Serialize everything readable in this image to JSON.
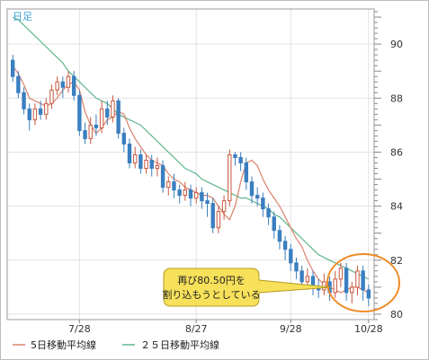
{
  "chart_data": {
    "type": "candlestick",
    "timeframe_label": "日足",
    "x_tick_labels": [
      "7/28",
      "8/27",
      "9/28",
      "10/28"
    ],
    "y_ticks": [
      80,
      82,
      84,
      86,
      88,
      90
    ],
    "ylim": [
      79.8,
      91.3
    ],
    "grid": true,
    "legend_position": "bottom-left",
    "series": [
      {
        "name": "5日移動平均線",
        "color": "#d9826a",
        "values": [
          89.2,
          88.9,
          88.5,
          88.0,
          87.9,
          87.8,
          87.7,
          87.8,
          88.0,
          88.3,
          88.5,
          88.6,
          88.3,
          87.5,
          87.0,
          86.7,
          86.9,
          87.2,
          87.3,
          87.5,
          87.4,
          86.9,
          86.5,
          86.2,
          85.9,
          85.7,
          85.6,
          85.5,
          85.2,
          85.0,
          84.9,
          84.7,
          84.6,
          84.5,
          84.4,
          84.4,
          84.3,
          84.0,
          83.7,
          83.5,
          84.0,
          84.9,
          85.6,
          85.7,
          85.5,
          85.0,
          84.6,
          84.3,
          84.0,
          83.6,
          83.2,
          82.8,
          82.5,
          82.0,
          81.6,
          81.3,
          81.1,
          81.0,
          80.9,
          80.8,
          80.9,
          81.0,
          81.0,
          80.9,
          80.8
        ]
      },
      {
        "name": "２５日移動平均線",
        "color": "#5fb58c",
        "values": [
          91.0,
          90.9,
          90.7,
          90.5,
          90.3,
          90.1,
          89.9,
          89.7,
          89.5,
          89.3,
          89.0,
          88.8,
          88.6,
          88.4,
          88.2,
          88.0,
          87.9,
          87.8,
          87.6,
          87.4,
          87.3,
          87.2,
          87.1,
          87.0,
          86.8,
          86.6,
          86.4,
          86.2,
          86.0,
          85.8,
          85.6,
          85.4,
          85.3,
          85.2,
          85.0,
          84.9,
          84.8,
          84.7,
          84.6,
          84.5,
          84.4,
          84.3,
          84.3,
          84.2,
          84.1,
          84.0,
          83.9,
          83.7,
          83.6,
          83.4,
          83.2,
          83.0,
          82.8,
          82.6,
          82.4,
          82.2,
          82.1,
          82.0,
          81.9,
          81.8,
          81.7,
          81.6,
          81.5,
          81.4,
          81.3
        ]
      }
    ],
    "candles": [
      [
        89.4,
        88.8,
        89.6,
        88.6
      ],
      [
        88.8,
        88.2,
        89.0,
        88.0
      ],
      [
        88.2,
        87.6,
        88.4,
        87.4
      ],
      [
        87.6,
        87.2,
        87.8,
        86.8
      ],
      [
        87.2,
        87.6,
        87.8,
        87.0
      ],
      [
        87.6,
        87.4,
        87.9,
        87.2
      ],
      [
        87.4,
        87.8,
        88.0,
        87.2
      ],
      [
        87.8,
        88.3,
        88.5,
        87.6
      ],
      [
        88.3,
        88.6,
        88.8,
        88.1
      ],
      [
        88.6,
        88.4,
        88.8,
        88.0
      ],
      [
        88.4,
        88.8,
        89.0,
        88.2
      ],
      [
        88.8,
        88.1,
        89.0,
        87.9
      ],
      [
        88.1,
        86.8,
        88.3,
        86.6
      ],
      [
        86.8,
        86.5,
        87.1,
        86.3
      ],
      [
        86.5,
        87.0,
        87.3,
        86.3
      ],
      [
        87.0,
        86.9,
        87.4,
        86.6
      ],
      [
        86.9,
        87.6,
        87.9,
        86.7
      ],
      [
        87.6,
        87.3,
        87.9,
        87.0
      ],
      [
        87.3,
        87.9,
        88.1,
        87.1
      ],
      [
        87.9,
        86.7,
        88.0,
        86.5
      ],
      [
        86.7,
        86.3,
        86.9,
        86.0
      ],
      [
        86.3,
        85.6,
        86.5,
        85.4
      ],
      [
        85.6,
        85.9,
        86.2,
        85.4
      ],
      [
        85.9,
        85.4,
        86.1,
        85.2
      ],
      [
        85.4,
        85.7,
        85.9,
        85.2
      ],
      [
        85.7,
        85.4,
        85.9,
        85.1
      ],
      [
        85.4,
        85.5,
        85.8,
        85.1
      ],
      [
        85.5,
        84.7,
        85.7,
        84.5
      ],
      [
        84.7,
        84.9,
        85.1,
        84.4
      ],
      [
        84.9,
        84.6,
        85.2,
        84.3
      ],
      [
        84.6,
        84.4,
        84.8,
        84.1
      ],
      [
        84.4,
        84.6,
        84.9,
        84.2
      ],
      [
        84.6,
        84.3,
        84.8,
        84.0
      ],
      [
        84.3,
        84.5,
        84.7,
        84.1
      ],
      [
        84.5,
        84.2,
        84.7,
        83.9
      ],
      [
        84.2,
        84.1,
        84.5,
        83.6
      ],
      [
        84.1,
        83.2,
        84.3,
        83.0
      ],
      [
        83.2,
        83.8,
        84.0,
        83.0
      ],
      [
        83.8,
        84.2,
        84.4,
        83.5
      ],
      [
        84.2,
        85.9,
        86.1,
        84.0
      ],
      [
        85.9,
        85.8,
        86.0,
        85.5
      ],
      [
        85.8,
        85.6,
        86.0,
        85.3
      ],
      [
        85.6,
        84.9,
        85.8,
        84.6
      ],
      [
        84.9,
        84.4,
        85.1,
        84.1
      ],
      [
        84.4,
        84.3,
        84.7,
        84.0
      ],
      [
        84.3,
        83.9,
        84.5,
        83.6
      ],
      [
        83.9,
        83.6,
        84.1,
        83.3
      ],
      [
        83.6,
        83.1,
        83.8,
        82.8
      ],
      [
        83.1,
        82.7,
        83.3,
        82.4
      ],
      [
        82.7,
        82.4,
        82.9,
        82.0
      ],
      [
        82.4,
        81.9,
        82.6,
        81.6
      ],
      [
        81.9,
        81.6,
        82.1,
        81.3
      ],
      [
        81.6,
        81.2,
        81.8,
        80.9
      ],
      [
        81.2,
        81.4,
        81.7,
        80.9
      ],
      [
        81.4,
        81.0,
        81.6,
        80.7
      ],
      [
        81.0,
        80.9,
        81.3,
        80.6
      ],
      [
        80.9,
        81.2,
        81.5,
        80.7
      ],
      [
        81.2,
        80.8,
        81.4,
        80.5
      ],
      [
        80.8,
        81.3,
        81.6,
        80.6
      ],
      [
        81.3,
        81.7,
        81.9,
        81.0
      ],
      [
        81.7,
        80.8,
        81.9,
        80.5
      ],
      [
        80.8,
        81.0,
        81.2,
        80.4
      ],
      [
        81.0,
        81.6,
        81.8,
        80.7
      ],
      [
        81.6,
        80.9,
        81.8,
        80.5
      ],
      [
        80.9,
        80.6,
        81.1,
        80.3
      ]
    ],
    "annotation": {
      "line1": "再び80.50円を",
      "line2": "割り込もうとしている"
    },
    "colors": {
      "up": "#c8573e",
      "down": "#3a7fc0",
      "callout_fill": "#f7e15a",
      "circle": "#f08a24"
    }
  }
}
